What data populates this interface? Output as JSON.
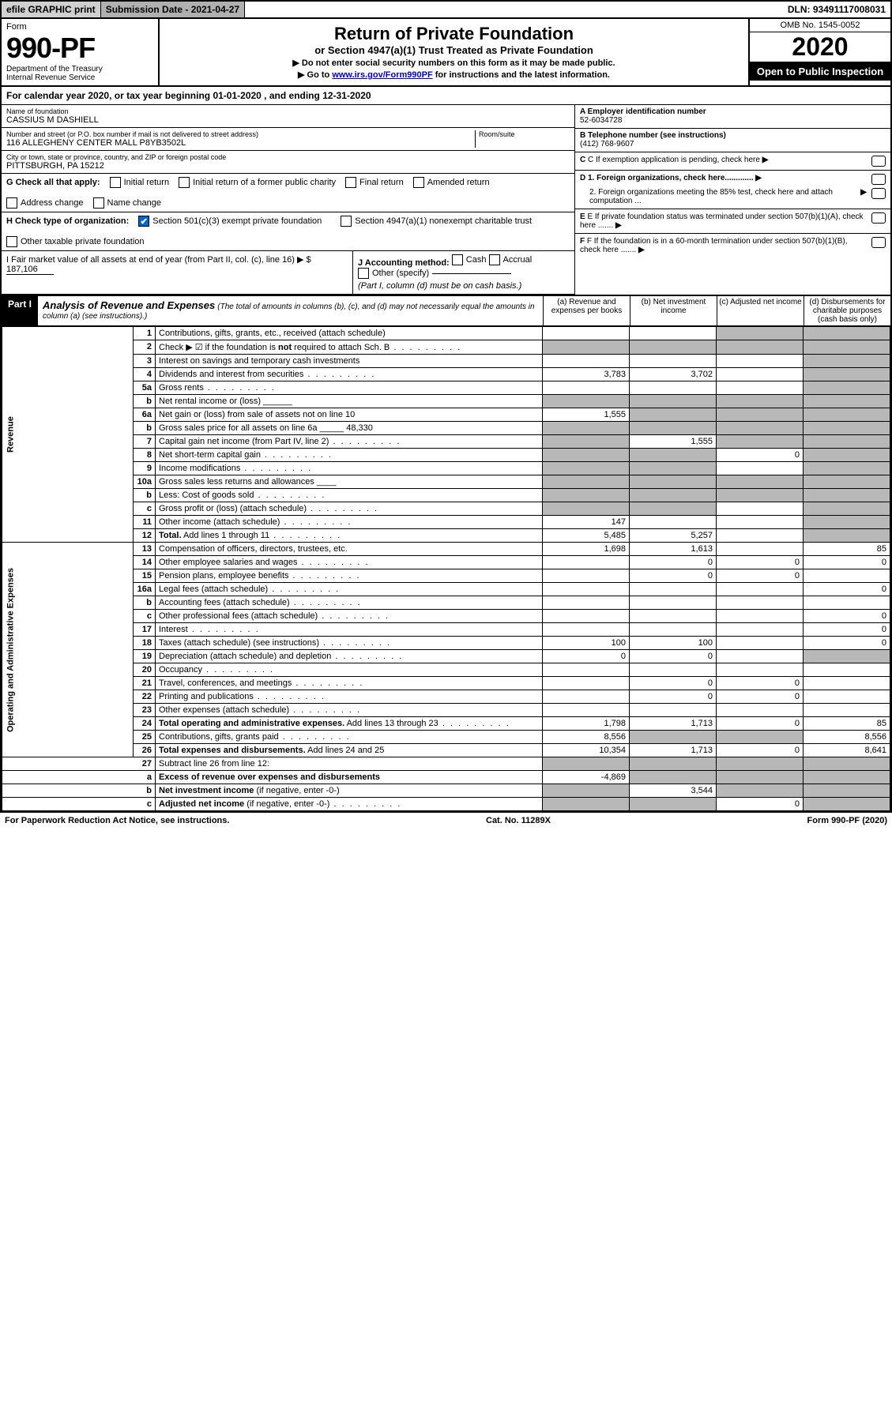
{
  "topbar": {
    "efile": "efile GRAPHIC print",
    "subdate": "Submission Date - 2021-04-27",
    "dln": "DLN: 93491117008031"
  },
  "header": {
    "form_word": "Form",
    "form_num": "990-PF",
    "dept": "Department of the Treasury",
    "irs": "Internal Revenue Service",
    "title": "Return of Private Foundation",
    "subtitle": "or Section 4947(a)(1) Trust Treated as Private Foundation",
    "arrow1": "▶ Do not enter social security numbers on this form as it may be made public.",
    "arrow2_pre": "▶ Go to ",
    "arrow2_link": "www.irs.gov/Form990PF",
    "arrow2_post": " for instructions and the latest information.",
    "omb": "OMB No. 1545-0052",
    "year": "2020",
    "open": "Open to Public Inspection"
  },
  "calyear": {
    "pre": "For calendar year 2020, or tax year beginning ",
    "begin": "01-01-2020",
    "mid": " , and ending ",
    "end": "12-31-2020"
  },
  "info": {
    "name_label": "Name of foundation",
    "name": "CASSIUS M DASHIELL",
    "addr_label": "Number and street (or P.O. box number if mail is not delivered to street address)",
    "addr": "116 ALLEGHENY CENTER MALL P8YB3502L",
    "room_label": "Room/suite",
    "city_label": "City or town, state or province, country, and ZIP or foreign postal code",
    "city": "PITTSBURGH, PA  15212",
    "a_label": "A Employer identification number",
    "a_val": "52-6034728",
    "b_label": "B Telephone number (see instructions)",
    "b_val": "(412) 768-9607",
    "c_label": "C If exemption application is pending, check here",
    "d1": "D 1. Foreign organizations, check here.............",
    "d2": "2. Foreign organizations meeting the 85% test, check here and attach computation ...",
    "e": "E If private foundation status was terminated under section 507(b)(1)(A), check here .......",
    "f": "F If the foundation is in a 60-month termination under section 507(b)(1)(B), check here .......",
    "g_label": "G Check all that apply:",
    "g_opts": [
      "Initial return",
      "Initial return of a former public charity",
      "Final return",
      "Amended return",
      "Address change",
      "Name change"
    ],
    "h_label": "H Check type of organization:",
    "h_opt1": "Section 501(c)(3) exempt private foundation",
    "h_opt2": "Section 4947(a)(1) nonexempt charitable trust",
    "h_opt3": "Other taxable private foundation",
    "i_label": "I Fair market value of all assets at end of year (from Part II, col. (c), line 16) ▶ $",
    "i_val": "187,106",
    "j_label": "J Accounting method:",
    "j_opts": [
      "Cash",
      "Accrual",
      "Other (specify)"
    ],
    "j_note": "(Part I, column (d) must be on cash basis.)"
  },
  "part1": {
    "badge": "Part I",
    "title": "Analysis of Revenue and Expenses",
    "note": "(The total of amounts in columns (b), (c), and (d) may not necessarily equal the amounts in column (a) (see instructions).)",
    "cols": {
      "a": "(a) Revenue and expenses per books",
      "b": "(b) Net investment income",
      "c": "(c) Adjusted net income",
      "d": "(d) Disbursements for charitable purposes (cash basis only)"
    }
  },
  "sections": {
    "revenue": "Revenue",
    "opex": "Operating and Administrative Expenses"
  },
  "rows": [
    {
      "sec": "rev",
      "n": "1",
      "d": "Contributions, gifts, grants, etc., received (attach schedule)",
      "a": "",
      "b": "",
      "c": "g",
      "dd": "g"
    },
    {
      "sec": "rev",
      "n": "2",
      "d": "Check ▶ ☑ if the foundation is <b>not</b> required to attach Sch. B",
      "dots": true,
      "a": "g",
      "b": "g",
      "c": "g",
      "dd": "g"
    },
    {
      "sec": "rev",
      "n": "3",
      "d": "Interest on savings and temporary cash investments",
      "a": "",
      "b": "",
      "c": "",
      "dd": "g"
    },
    {
      "sec": "rev",
      "n": "4",
      "d": "Dividends and interest from securities",
      "dots": true,
      "a": "3,783",
      "b": "3,702",
      "c": "",
      "dd": "g"
    },
    {
      "sec": "rev",
      "n": "5a",
      "d": "Gross rents",
      "dots": true,
      "a": "",
      "b": "",
      "c": "",
      "dd": "g"
    },
    {
      "sec": "rev",
      "n": "b",
      "d": "Net rental income or (loss)  ______",
      "a": "g",
      "b": "g",
      "c": "g",
      "dd": "g"
    },
    {
      "sec": "rev",
      "n": "6a",
      "d": "Net gain or (loss) from sale of assets not on line 10",
      "a": "1,555",
      "b": "g",
      "c": "g",
      "dd": "g"
    },
    {
      "sec": "rev",
      "n": "b",
      "d": "Gross sales price for all assets on line 6a _____ 48,330",
      "a": "g",
      "b": "g",
      "c": "g",
      "dd": "g"
    },
    {
      "sec": "rev",
      "n": "7",
      "d": "Capital gain net income (from Part IV, line 2)",
      "dots": true,
      "a": "g",
      "b": "1,555",
      "c": "g",
      "dd": "g"
    },
    {
      "sec": "rev",
      "n": "8",
      "d": "Net short-term capital gain",
      "dots": true,
      "a": "g",
      "b": "g",
      "c": "0",
      "dd": "g"
    },
    {
      "sec": "rev",
      "n": "9",
      "d": "Income modifications",
      "dots": true,
      "a": "g",
      "b": "g",
      "c": "",
      "dd": "g"
    },
    {
      "sec": "rev",
      "n": "10a",
      "d": "Gross sales less returns and allowances  ____",
      "a": "g",
      "b": "g",
      "c": "g",
      "dd": "g"
    },
    {
      "sec": "rev",
      "n": "b",
      "d": "Less: Cost of goods sold",
      "dots": true,
      "a": "g",
      "b": "g",
      "c": "g",
      "dd": "g"
    },
    {
      "sec": "rev",
      "n": "c",
      "d": "Gross profit or (loss) (attach schedule)",
      "dots": true,
      "a": "g",
      "b": "g",
      "c": "",
      "dd": "g"
    },
    {
      "sec": "rev",
      "n": "11",
      "d": "Other income (attach schedule)",
      "dots": true,
      "a": "147",
      "b": "",
      "c": "",
      "dd": "g"
    },
    {
      "sec": "rev",
      "n": "12",
      "d": "<b>Total.</b> Add lines 1 through 11",
      "dots": true,
      "a": "5,485",
      "b": "5,257",
      "c": "",
      "dd": "g"
    },
    {
      "sec": "op",
      "n": "13",
      "d": "Compensation of officers, directors, trustees, etc.",
      "a": "1,698",
      "b": "1,613",
      "c": "",
      "dd": "85"
    },
    {
      "sec": "op",
      "n": "14",
      "d": "Other employee salaries and wages",
      "dots": true,
      "a": "",
      "b": "0",
      "c": "0",
      "dd": "0"
    },
    {
      "sec": "op",
      "n": "15",
      "d": "Pension plans, employee benefits",
      "dots": true,
      "a": "",
      "b": "0",
      "c": "0",
      "dd": ""
    },
    {
      "sec": "op",
      "n": "16a",
      "d": "Legal fees (attach schedule)",
      "dots": true,
      "a": "",
      "b": "",
      "c": "",
      "dd": "0"
    },
    {
      "sec": "op",
      "n": "b",
      "d": "Accounting fees (attach schedule)",
      "dots": true,
      "a": "",
      "b": "",
      "c": "",
      "dd": ""
    },
    {
      "sec": "op",
      "n": "c",
      "d": "Other professional fees (attach schedule)",
      "dots": true,
      "a": "",
      "b": "",
      "c": "",
      "dd": "0"
    },
    {
      "sec": "op",
      "n": "17",
      "d": "Interest",
      "dots": true,
      "a": "",
      "b": "",
      "c": "",
      "dd": "0"
    },
    {
      "sec": "op",
      "n": "18",
      "d": "Taxes (attach schedule) (see instructions)",
      "dots": true,
      "a": "100",
      "b": "100",
      "c": "",
      "dd": "0"
    },
    {
      "sec": "op",
      "n": "19",
      "d": "Depreciation (attach schedule) and depletion",
      "dots": true,
      "a": "0",
      "b": "0",
      "c": "",
      "dd": "g"
    },
    {
      "sec": "op",
      "n": "20",
      "d": "Occupancy",
      "dots": true,
      "a": "",
      "b": "",
      "c": "",
      "dd": ""
    },
    {
      "sec": "op",
      "n": "21",
      "d": "Travel, conferences, and meetings",
      "dots": true,
      "a": "",
      "b": "0",
      "c": "0",
      "dd": ""
    },
    {
      "sec": "op",
      "n": "22",
      "d": "Printing and publications",
      "dots": true,
      "a": "",
      "b": "0",
      "c": "0",
      "dd": ""
    },
    {
      "sec": "op",
      "n": "23",
      "d": "Other expenses (attach schedule)",
      "dots": true,
      "a": "",
      "b": "",
      "c": "",
      "dd": ""
    },
    {
      "sec": "op",
      "n": "24",
      "d": "<b>Total operating and administrative expenses.</b> Add lines 13 through 23",
      "dots": true,
      "a": "1,798",
      "b": "1,713",
      "c": "0",
      "dd": "85"
    },
    {
      "sec": "op",
      "n": "25",
      "d": "Contributions, gifts, grants paid",
      "dots": true,
      "a": "8,556",
      "b": "g",
      "c": "g",
      "dd": "8,556"
    },
    {
      "sec": "op",
      "n": "26",
      "d": "<b>Total expenses and disbursements.</b> Add lines 24 and 25",
      "a": "10,354",
      "b": "1,713",
      "c": "0",
      "dd": "8,641"
    },
    {
      "sec": "none",
      "n": "27",
      "d": "Subtract line 26 from line 12:",
      "a": "g",
      "b": "g",
      "c": "g",
      "dd": "g"
    },
    {
      "sec": "none",
      "n": "a",
      "d": "<b>Excess of revenue over expenses and disbursements</b>",
      "a": "-4,869",
      "b": "g",
      "c": "g",
      "dd": "g"
    },
    {
      "sec": "none",
      "n": "b",
      "d": "<b>Net investment income</b> (if negative, enter -0-)",
      "a": "g",
      "b": "3,544",
      "c": "g",
      "dd": "g"
    },
    {
      "sec": "none",
      "n": "c",
      "d": "<b>Adjusted net income</b> (if negative, enter -0-)",
      "dots": true,
      "a": "g",
      "b": "g",
      "c": "0",
      "dd": "g"
    }
  ],
  "footer": {
    "left": "For Paperwork Reduction Act Notice, see instructions.",
    "mid": "Cat. No. 11289X",
    "right": "Form 990-PF (2020)"
  },
  "colors": {
    "grey": "#b8b8b8",
    "black": "#000000",
    "link": "#0000cc",
    "check": "#0066cc"
  }
}
